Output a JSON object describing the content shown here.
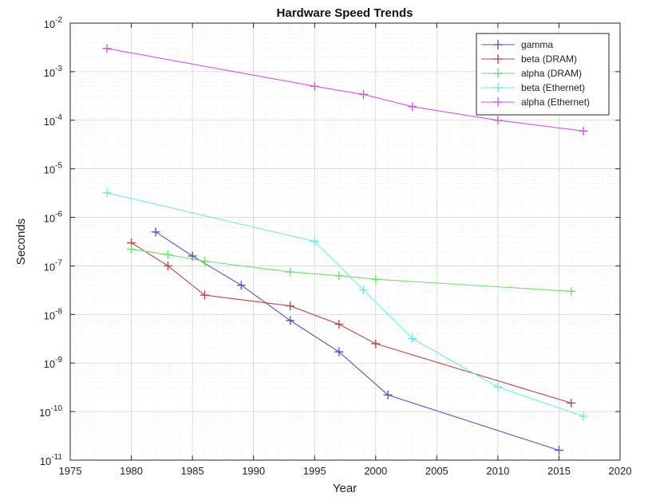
{
  "chart_data": {
    "type": "line",
    "title": "Hardware Speed Trends",
    "xlabel": "Year",
    "ylabel": "Seconds",
    "xlim": [
      1975,
      2020
    ],
    "ylim": [
      1e-11,
      0.01
    ],
    "yscale": "log",
    "grid": true,
    "minor_grid": true,
    "legend_position": "top-right",
    "x_ticks": [
      "1975",
      "1980",
      "1985",
      "1990",
      "1995",
      "2000",
      "2005",
      "2010",
      "2015",
      "2020"
    ],
    "y_ticks": [
      {
        "base": "10",
        "exp": "-11"
      },
      {
        "base": "10",
        "exp": "-10"
      },
      {
        "base": "10",
        "exp": "-9"
      },
      {
        "base": "10",
        "exp": "-8"
      },
      {
        "base": "10",
        "exp": "-7"
      },
      {
        "base": "10",
        "exp": "-6"
      },
      {
        "base": "10",
        "exp": "-5"
      },
      {
        "base": "10",
        "exp": "-4"
      },
      {
        "base": "10",
        "exp": "-3"
      },
      {
        "base": "10",
        "exp": "-2"
      }
    ],
    "series": [
      {
        "name": "gamma",
        "color": "#5555bb",
        "marker": "+",
        "x": [
          1982,
          1985,
          1989,
          1993,
          1997,
          2001,
          2015
        ],
        "y": [
          5e-07,
          1.6e-07,
          4e-08,
          7.5e-09,
          1.7e-09,
          2.2e-10,
          1.6e-11
        ]
      },
      {
        "name": "beta (DRAM)",
        "color": "#bb4444",
        "marker": "+",
        "x": [
          1980,
          1983,
          1986,
          1993,
          1997,
          2000,
          2016
        ],
        "y": [
          3e-07,
          1e-07,
          2.5e-08,
          1.5e-08,
          6.3e-09,
          2.5e-09,
          1.5e-10
        ]
      },
      {
        "name": "alpha (DRAM)",
        "color": "#66e066",
        "marker": "+",
        "x": [
          1980,
          1983,
          1986,
          1993,
          1997,
          2000,
          2016
        ],
        "y": [
          2.2e-07,
          1.7e-07,
          1.25e-07,
          7.5e-08,
          6.3e-08,
          5.3e-08,
          3e-08
        ]
      },
      {
        "name": "beta (Ethernet)",
        "color": "#66eedd",
        "marker": "+",
        "x": [
          1978,
          1995,
          1999,
          2003,
          2010,
          2017
        ],
        "y": [
          3.2e-06,
          3.2e-07,
          3.2e-08,
          3.2e-09,
          3.2e-10,
          8e-11
        ]
      },
      {
        "name": "alpha (Ethernet)",
        "color": "#d055d8",
        "marker": "+",
        "x": [
          1978,
          1995,
          1999,
          2003,
          2010,
          2017
        ],
        "y": [
          0.003,
          0.0005,
          0.00034,
          0.00019,
          0.0001,
          6e-05
        ]
      }
    ]
  }
}
